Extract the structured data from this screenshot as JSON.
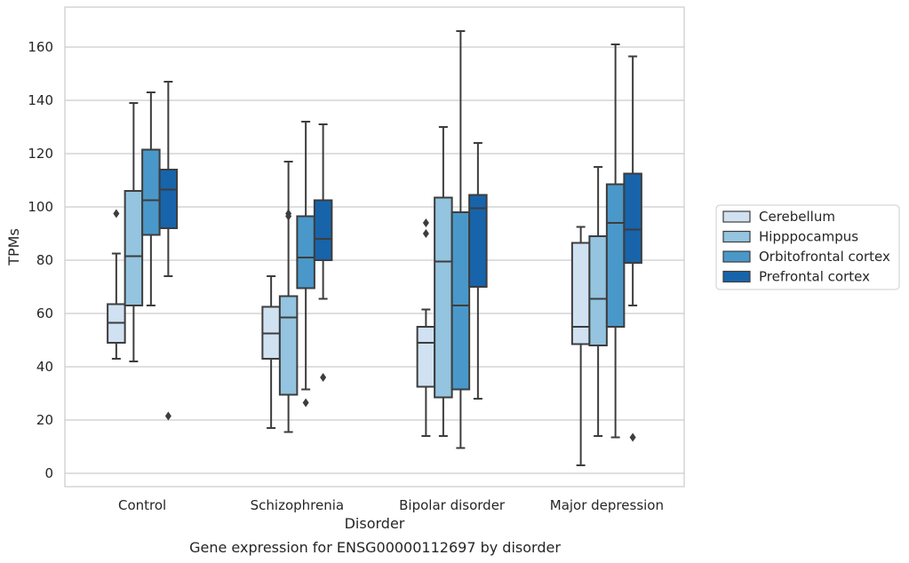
{
  "chart_data": {
    "type": "box",
    "title": "Gene expression for ENSG00000112697 by disorder",
    "xlabel": "Disorder",
    "ylabel": "TPMs",
    "ylim": [
      -5,
      175
    ],
    "yticks": [
      0,
      20,
      40,
      60,
      80,
      100,
      120,
      140,
      160
    ],
    "grid": true,
    "legend_position": "right",
    "categories": [
      "Control",
      "Schizophrenia",
      "Bipolar disorder",
      "Major depression"
    ],
    "series": [
      {
        "name": "Cerebellum",
        "color": "#d0e1f2",
        "boxes": [
          {
            "whislo": 43,
            "q1": 49,
            "med": 56.5,
            "q3": 63.5,
            "whishi": 82.5,
            "fliers": [
              97.5
            ]
          },
          {
            "whislo": 17,
            "q1": 43,
            "med": 52.5,
            "q3": 62.5,
            "whishi": 74,
            "fliers": []
          },
          {
            "whislo": 14,
            "q1": 32.5,
            "med": 49,
            "q3": 55,
            "whishi": 61.5,
            "fliers": [
              94,
              90
            ]
          },
          {
            "whislo": 3,
            "q1": 48.5,
            "med": 55,
            "q3": 86.5,
            "whishi": 92.5,
            "fliers": []
          }
        ]
      },
      {
        "name": "Hipppocampus",
        "color": "#94c4df",
        "boxes": [
          {
            "whislo": 42,
            "q1": 63,
            "med": 81.5,
            "q3": 106,
            "whishi": 139,
            "fliers": []
          },
          {
            "whislo": 15.5,
            "q1": 29.5,
            "med": 58.5,
            "q3": 66.5,
            "whishi": 117,
            "fliers": [
              97.5,
              96.5
            ]
          },
          {
            "whislo": 14,
            "q1": 28.5,
            "med": 79.5,
            "q3": 103.5,
            "whishi": 130,
            "fliers": []
          },
          {
            "whislo": 14,
            "q1": 48,
            "med": 65.5,
            "q3": 89,
            "whishi": 115,
            "fliers": []
          }
        ]
      },
      {
        "name": "Orbitofrontal cortex",
        "color": "#4a98c9",
        "boxes": [
          {
            "whislo": 63,
            "q1": 89.5,
            "med": 102.5,
            "q3": 121.5,
            "whishi": 143,
            "fliers": []
          },
          {
            "whislo": 31.5,
            "q1": 69.5,
            "med": 81,
            "q3": 96.5,
            "whishi": 132,
            "fliers": [
              26.5
            ]
          },
          {
            "whislo": 9.5,
            "q1": 31.5,
            "med": 63,
            "q3": 98,
            "whishi": 166,
            "fliers": []
          },
          {
            "whislo": 13.5,
            "q1": 55,
            "med": 94,
            "q3": 108.5,
            "whishi": 161,
            "fliers": []
          }
        ]
      },
      {
        "name": "Prefrontal cortex",
        "color": "#1764ab",
        "boxes": [
          {
            "whislo": 74,
            "q1": 92,
            "med": 106.5,
            "q3": 114,
            "whishi": 147,
            "fliers": [
              21.5
            ]
          },
          {
            "whislo": 65.5,
            "q1": 80,
            "med": 88,
            "q3": 102.5,
            "whishi": 131,
            "fliers": [
              36
            ]
          },
          {
            "whislo": 28,
            "q1": 70,
            "med": 99.5,
            "q3": 104.5,
            "whishi": 124,
            "fliers": []
          },
          {
            "whislo": 63,
            "q1": 79,
            "med": 91.5,
            "q3": 112.5,
            "whishi": 156.5,
            "fliers": [
              13.5
            ]
          }
        ]
      }
    ]
  }
}
